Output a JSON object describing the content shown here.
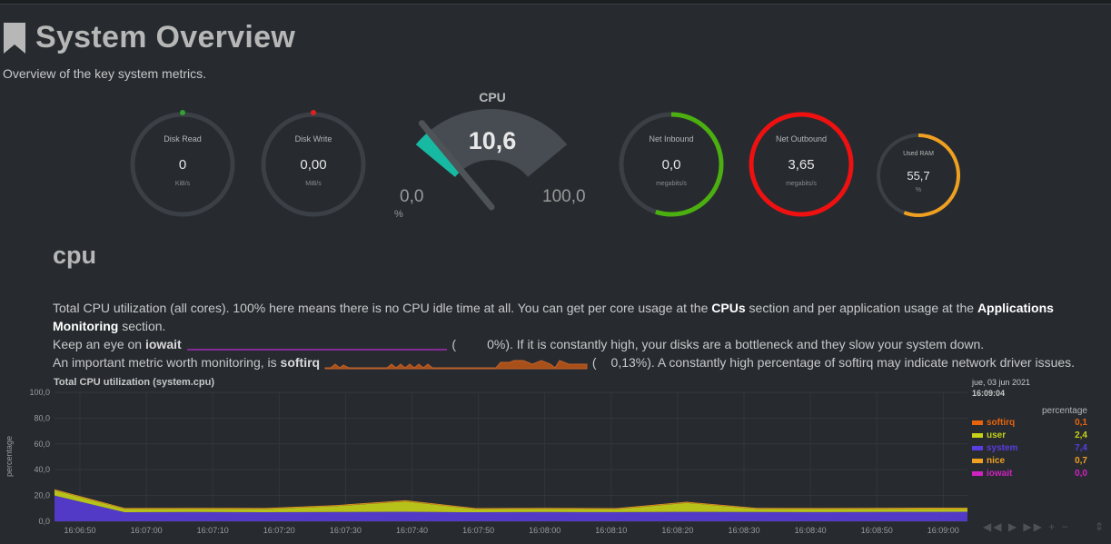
{
  "header": {
    "title": "System Overview",
    "subtitle": "Overview of the key system metrics."
  },
  "gauges": {
    "disk_read": {
      "label": "Disk Read",
      "value": "0",
      "unit": "KiB/s",
      "fraction": 0.0,
      "color": "#2fa22f"
    },
    "disk_write": {
      "label": "Disk Write",
      "value": "0,00",
      "unit": "MiB/s",
      "fraction": 0.0,
      "color": "#e02020"
    },
    "cpu": {
      "title": "CPU",
      "value": "10,6",
      "min": "0,0",
      "max": "100,0",
      "unit": "%",
      "fraction": 0.106,
      "color": "#18b9a3"
    },
    "net_inbound": {
      "label": "Net Inbound",
      "value": "0,0",
      "unit": "megabits/s",
      "fraction": 0.55,
      "color": "#4caf10"
    },
    "net_outbound": {
      "label": "Net Outbound",
      "value": "3,65",
      "unit": "megabits/s",
      "fraction": 1.0,
      "color": "#f01010"
    },
    "used_ram": {
      "label": "Used RAM",
      "value": "55,7",
      "unit": "%",
      "fraction": 0.557,
      "color": "#f0a020"
    }
  },
  "section": {
    "title": "cpu",
    "desc1_a": "Total CPU utilization (all cores). 100% here means there is no CPU idle time at all. You can get per core usage at the ",
    "desc1_link1": "CPUs",
    "desc1_b": " section and per application usage at the ",
    "desc1_link2": "Applications",
    "desc2_link": "Monitoring",
    "desc2_rest": " section.",
    "iowait_pre": "Keep an eye on ",
    "iowait_label": "iowait",
    "iowait_paren": " (",
    "iowait_value": "0%",
    "iowait_post": "). If it is constantly high, your disks are a bottleneck and they slow your system down.",
    "softirq_pre": "An important metric worth monitoring, is ",
    "softirq_label": "softirq",
    "softirq_paren": " (",
    "softirq_value": "0,13%",
    "softirq_post": "). A constantly high percentage of softirq may indicate network driver issues."
  },
  "chart_data": {
    "type": "area",
    "title": "Total CPU utilization (system.cpu)",
    "ylabel": "percentage",
    "ylim": [
      0,
      100
    ],
    "yticks": [
      "100,0",
      "80,0",
      "60,0",
      "40,0",
      "20,0",
      "0,0"
    ],
    "categories": [
      "16:06:50",
      "16:07:00",
      "16:07:10",
      "16:07:20",
      "16:07:30",
      "16:07:40",
      "16:07:50",
      "16:08:00",
      "16:08:10",
      "16:08:20",
      "16:08:30",
      "16:08:40",
      "16:08:50",
      "16:09:00"
    ],
    "series": [
      {
        "name": "softirq",
        "color": "#e8630a",
        "values": [
          0.1,
          0.1,
          0.1,
          0.1,
          0.1,
          0.2,
          0.1,
          0.1,
          0.1,
          0.1,
          0.1,
          0.1,
          0.1,
          0.1
        ]
      },
      {
        "name": "user",
        "color": "#c6d118",
        "values": [
          4.0,
          2.5,
          2.4,
          2.5,
          4.5,
          8.0,
          2.4,
          2.4,
          2.3,
          7.0,
          2.4,
          2.4,
          2.4,
          2.4
        ]
      },
      {
        "name": "system",
        "color": "#5a3ce0",
        "values": [
          20.0,
          7.0,
          7.2,
          7.0,
          7.2,
          7.4,
          7.0,
          7.2,
          7.1,
          7.3,
          7.2,
          7.1,
          7.3,
          7.4
        ]
      },
      {
        "name": "nice",
        "color": "#f0a020",
        "values": [
          0.7,
          0.7,
          0.7,
          0.7,
          0.7,
          0.7,
          0.7,
          0.7,
          0.7,
          0.7,
          0.7,
          0.7,
          0.7,
          0.7
        ]
      },
      {
        "name": "iowait",
        "color": "#d022c0",
        "values": [
          0.0,
          0.0,
          0.0,
          0.0,
          0.0,
          0.0,
          0.0,
          0.0,
          0.0,
          0.0,
          0.0,
          0.0,
          0.0,
          0.0
        ]
      }
    ]
  },
  "legend": {
    "date": "jue, 03 jun 2021",
    "time": "16:09:04",
    "column_header": "percentage",
    "items": [
      {
        "name": "softirq",
        "value": "0,1",
        "color": "#e8630a"
      },
      {
        "name": "user",
        "value": "2,4",
        "color": "#c6d118"
      },
      {
        "name": "system",
        "value": "7,4",
        "color": "#5a3ce0"
      },
      {
        "name": "nice",
        "value": "0,7",
        "color": "#f0a020"
      },
      {
        "name": "iowait",
        "value": "0,0",
        "color": "#d022c0"
      }
    ]
  },
  "controls": {
    "rewind": "◀◀",
    "play": "▶",
    "forward": "▶▶",
    "zoom_in": "+",
    "zoom_out": "−",
    "resize": "⇕"
  }
}
